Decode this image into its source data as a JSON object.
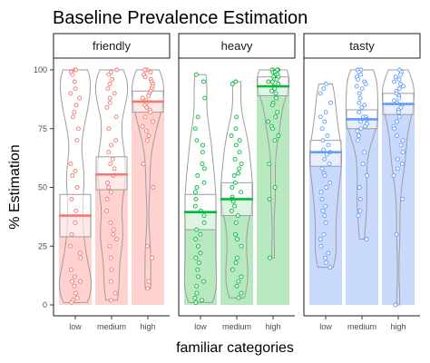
{
  "chart_data": {
    "type": "bar",
    "title": "Baseline Prevalence Estimation",
    "xlabel": "familiar categories",
    "ylabel": "% Estimation",
    "ylim": [
      0,
      100
    ],
    "yticks": [
      0,
      25,
      50,
      75,
      100
    ],
    "categories": [
      "low",
      "medium",
      "high"
    ],
    "grid": false,
    "legend": "none",
    "panels": [
      {
        "facet": "friendly",
        "color": "#F8766D",
        "fill": "#FFD1CF",
        "means": [
          38,
          55.5,
          86.5
        ],
        "boxes": [
          {
            "q1": 29,
            "median": 38,
            "q3": 47
          },
          {
            "q1": 49,
            "median": 55.5,
            "q3": 63
          },
          {
            "q1": 82,
            "median": 86.5,
            "q3": 91
          }
        ],
        "points": [
          [
            100,
            100,
            99,
            98,
            95,
            92,
            90,
            88,
            85,
            82,
            80,
            75,
            70,
            60,
            57,
            55,
            50,
            45,
            40,
            35,
            30,
            25,
            22,
            20,
            15,
            12,
            10,
            10,
            8,
            5,
            3,
            2,
            1
          ],
          [
            100,
            99,
            98,
            96,
            94,
            92,
            90,
            88,
            86,
            84,
            80,
            75,
            70,
            68,
            65,
            62,
            60,
            58,
            55,
            52,
            50,
            48,
            45,
            40,
            35,
            32,
            30,
            28,
            25,
            20,
            15,
            10,
            5,
            2
          ],
          [
            100,
            100,
            100,
            99,
            98,
            97,
            96,
            95,
            94,
            93,
            92,
            91,
            90,
            89,
            88,
            87,
            86,
            85,
            84,
            83,
            82,
            80,
            78,
            76,
            74,
            72,
            70,
            60,
            50,
            25,
            20,
            10,
            7
          ]
        ]
      },
      {
        "facet": "heavy",
        "color": "#00BA38",
        "fill": "#B7E8C0",
        "means": [
          39.5,
          45,
          93
        ],
        "boxes": [
          {
            "q1": 32,
            "median": 39.5,
            "q3": 47
          },
          {
            "q1": 38,
            "median": 45,
            "q3": 52
          },
          {
            "q1": 89,
            "median": 93,
            "q3": 97
          }
        ],
        "points": [
          [
            98,
            95,
            88,
            80,
            75,
            70,
            68,
            65,
            60,
            58,
            55,
            52,
            50,
            48,
            45,
            42,
            40,
            38,
            35,
            32,
            30,
            28,
            25,
            22,
            20,
            18,
            15,
            12,
            10,
            8,
            5,
            3,
            2,
            1
          ],
          [
            95,
            94,
            80,
            75,
            72,
            70,
            68,
            65,
            62,
            60,
            58,
            56,
            55,
            52,
            50,
            48,
            46,
            45,
            44,
            42,
            40,
            38,
            35,
            30,
            28,
            25,
            20,
            18,
            15,
            12,
            10,
            8,
            5,
            3
          ],
          [
            100,
            100,
            100,
            100,
            99,
            99,
            98,
            98,
            97,
            97,
            96,
            96,
            95,
            95,
            94,
            93,
            92,
            91,
            90,
            88,
            86,
            85,
            82,
            80,
            78,
            76,
            75,
            72,
            70,
            60,
            50,
            45,
            20
          ]
        ]
      },
      {
        "facet": "tasty",
        "color": "#619CFF",
        "fill": "#C8D9FC",
        "means": [
          65,
          79,
          85.5
        ],
        "boxes": [
          {
            "q1": 59,
            "median": 65,
            "q3": 70
          },
          {
            "q1": 75,
            "median": 79,
            "q3": 83
          },
          {
            "q1": 81,
            "median": 85.5,
            "q3": 90
          }
        ],
        "points": [
          [
            94,
            92,
            90,
            86,
            82,
            80,
            78,
            75,
            72,
            70,
            68,
            66,
            65,
            64,
            62,
            60,
            58,
            56,
            55,
            52,
            50,
            48,
            45,
            42,
            40,
            38,
            35,
            30,
            28,
            25,
            22,
            20,
            18,
            16
          ],
          [
            100,
            100,
            99,
            98,
            97,
            96,
            95,
            94,
            93,
            92,
            90,
            88,
            86,
            85,
            84,
            82,
            80,
            80,
            79,
            78,
            77,
            76,
            75,
            74,
            72,
            70,
            65,
            60,
            55,
            50,
            45,
            40,
            38,
            28
          ],
          [
            100,
            99,
            98,
            97,
            96,
            95,
            94,
            93,
            92,
            91,
            90,
            89,
            88,
            87,
            86,
            85,
            84,
            83,
            82,
            80,
            78,
            76,
            75,
            72,
            70,
            68,
            65,
            62,
            60,
            58,
            55,
            45,
            30,
            0
          ]
        ]
      }
    ]
  }
}
